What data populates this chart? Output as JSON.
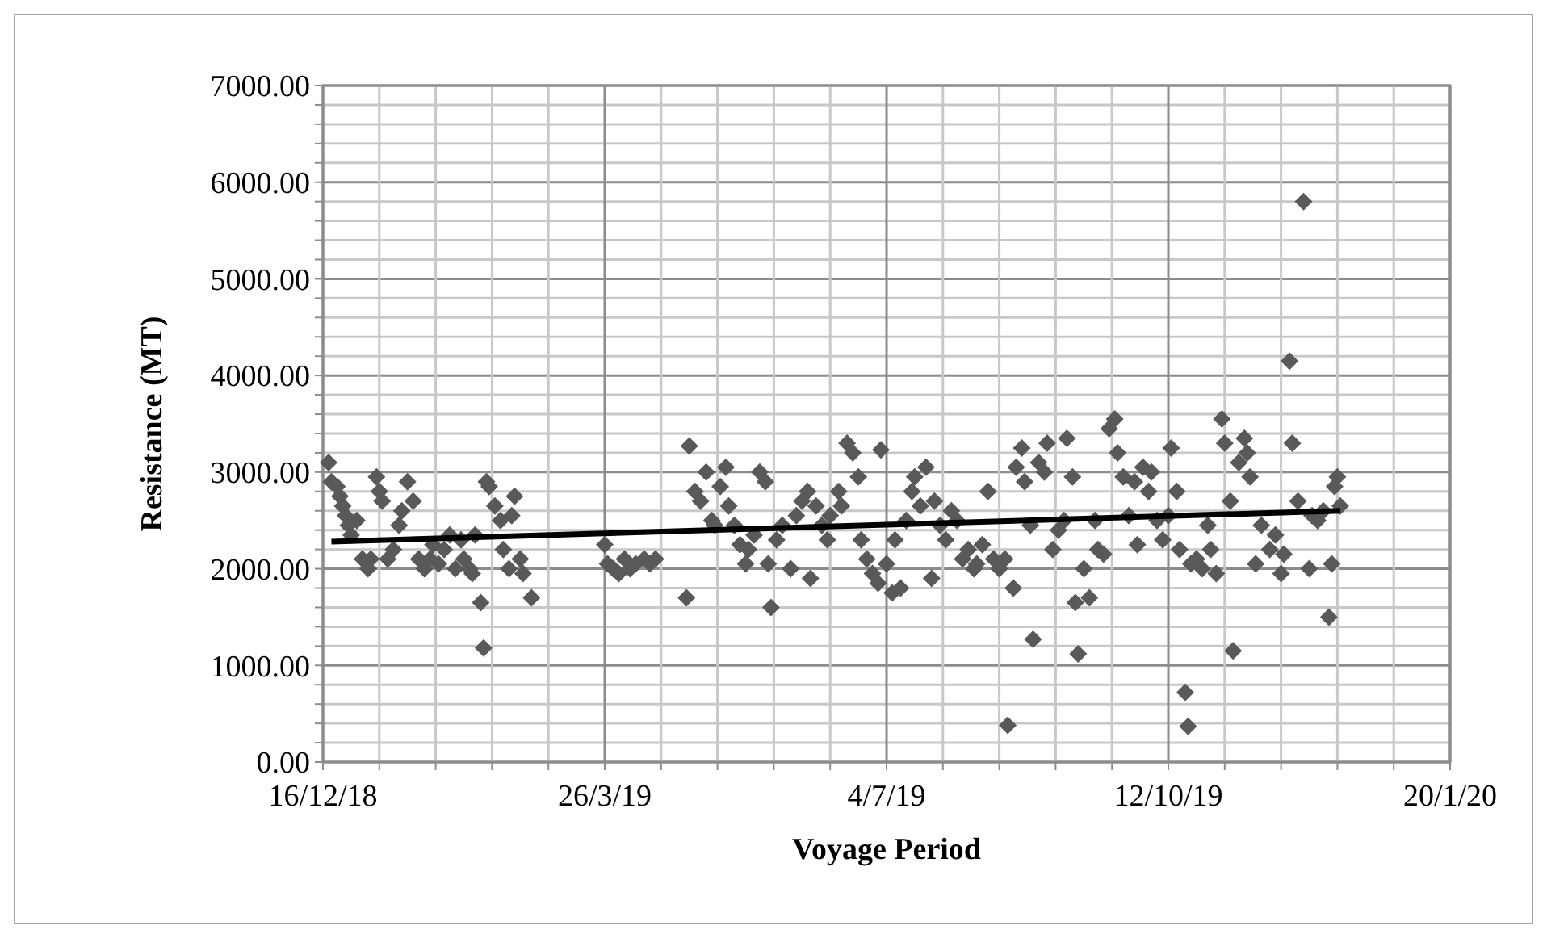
{
  "chart_data": {
    "type": "scatter",
    "xlabel": "Voyage Period",
    "ylabel": "Resistance (MT)",
    "grid": true,
    "xlim": [
      "2018-12-16",
      "2020-01-20"
    ],
    "xticks": [
      {
        "value": "2018-12-16",
        "label": "16/12/18"
      },
      {
        "value": "2019-01-05",
        "label": null
      },
      {
        "value": "2019-01-25",
        "label": null
      },
      {
        "value": "2019-02-14",
        "label": null
      },
      {
        "value": "2019-03-06",
        "label": null
      },
      {
        "value": "2019-03-26",
        "label": "26/3/19"
      },
      {
        "value": "2019-04-15",
        "label": null
      },
      {
        "value": "2019-05-05",
        "label": null
      },
      {
        "value": "2019-05-25",
        "label": null
      },
      {
        "value": "2019-06-14",
        "label": null
      },
      {
        "value": "2019-07-04",
        "label": "4/7/19"
      },
      {
        "value": "2019-07-24",
        "label": null
      },
      {
        "value": "2019-08-13",
        "label": null
      },
      {
        "value": "2019-09-02",
        "label": null
      },
      {
        "value": "2019-09-22",
        "label": null
      },
      {
        "value": "2019-10-12",
        "label": "12/10/19"
      },
      {
        "value": "2019-11-01",
        "label": null
      },
      {
        "value": "2019-11-21",
        "label": null
      },
      {
        "value": "2019-12-11",
        "label": null
      },
      {
        "value": "2019-12-31",
        "label": null
      },
      {
        "value": "2020-01-20",
        "label": "20/1/20"
      }
    ],
    "ylim": [
      0,
      7000
    ],
    "yticks": [
      {
        "value": 0,
        "label": "0.00"
      },
      {
        "value": 200,
        "label": null
      },
      {
        "value": 400,
        "label": null
      },
      {
        "value": 600,
        "label": null
      },
      {
        "value": 800,
        "label": null
      },
      {
        "value": 1000,
        "label": "1000.00"
      },
      {
        "value": 1200,
        "label": null
      },
      {
        "value": 1400,
        "label": null
      },
      {
        "value": 1600,
        "label": null
      },
      {
        "value": 1800,
        "label": null
      },
      {
        "value": 2000,
        "label": "2000.00"
      },
      {
        "value": 2200,
        "label": null
      },
      {
        "value": 2400,
        "label": null
      },
      {
        "value": 2600,
        "label": null
      },
      {
        "value": 2800,
        "label": null
      },
      {
        "value": 3000,
        "label": "3000.00"
      },
      {
        "value": 3200,
        "label": null
      },
      {
        "value": 3400,
        "label": null
      },
      {
        "value": 3600,
        "label": null
      },
      {
        "value": 3800,
        "label": null
      },
      {
        "value": 4000,
        "label": "4000.00"
      },
      {
        "value": 4200,
        "label": null
      },
      {
        "value": 4400,
        "label": null
      },
      {
        "value": 4600,
        "label": null
      },
      {
        "value": 4800,
        "label": null
      },
      {
        "value": 5000,
        "label": "5000.00"
      },
      {
        "value": 5200,
        "label": null
      },
      {
        "value": 5400,
        "label": null
      },
      {
        "value": 5600,
        "label": null
      },
      {
        "value": 5800,
        "label": null
      },
      {
        "value": 6000,
        "label": "6000.00"
      },
      {
        "value": 6200,
        "label": null
      },
      {
        "value": 6400,
        "label": null
      },
      {
        "value": 6600,
        "label": null
      },
      {
        "value": 6800,
        "label": null
      },
      {
        "value": 7000,
        "label": "7000.00"
      }
    ],
    "series": [
      {
        "marker": "diamond",
        "color": "#595959",
        "x": [
          "2018-12-18",
          "2018-12-19",
          "2018-12-21",
          "2018-12-22",
          "2018-12-23",
          "2018-12-24",
          "2018-12-25",
          "2018-12-26",
          "2018-12-28",
          "2018-12-30",
          "2019-01-01",
          "2019-01-02",
          "2019-01-04",
          "2019-01-05",
          "2019-01-06",
          "2019-01-08",
          "2019-01-10",
          "2019-01-12",
          "2019-01-13",
          "2019-01-15",
          "2019-01-17",
          "2019-01-19",
          "2019-01-21",
          "2019-01-23",
          "2019-01-24",
          "2019-01-26",
          "2019-01-28",
          "2019-01-30",
          "2019-02-01",
          "2019-02-03",
          "2019-02-04",
          "2019-02-06",
          "2019-02-07",
          "2019-02-08",
          "2019-02-10",
          "2019-02-11",
          "2019-02-12",
          "2019-02-13",
          "2019-02-15",
          "2019-02-17",
          "2019-02-18",
          "2019-02-20",
          "2019-02-21",
          "2019-02-22",
          "2019-02-24",
          "2019-02-25",
          "2019-02-28",
          "2019-03-26",
          "2019-03-27",
          "2019-03-29",
          "2019-03-31",
          "2019-04-02",
          "2019-04-04",
          "2019-04-06",
          "2019-04-09",
          "2019-04-11",
          "2019-04-13",
          "2019-04-24",
          "2019-04-25",
          "2019-04-27",
          "2019-04-29",
          "2019-05-01",
          "2019-05-03",
          "2019-05-04",
          "2019-05-06",
          "2019-05-08",
          "2019-05-09",
          "2019-05-11",
          "2019-05-13",
          "2019-05-15",
          "2019-05-16",
          "2019-05-18",
          "2019-05-20",
          "2019-05-22",
          "2019-05-23",
          "2019-05-24",
          "2019-05-26",
          "2019-05-28",
          "2019-05-31",
          "2019-06-02",
          "2019-06-04",
          "2019-06-06",
          "2019-06-07",
          "2019-06-09",
          "2019-06-11",
          "2019-06-13",
          "2019-06-14",
          "2019-06-17",
          "2019-06-18",
          "2019-06-20",
          "2019-06-22",
          "2019-06-24",
          "2019-06-25",
          "2019-06-27",
          "2019-06-29",
          "2019-07-01",
          "2019-07-02",
          "2019-07-04",
          "2019-07-06",
          "2019-07-07",
          "2019-07-09",
          "2019-07-11",
          "2019-07-13",
          "2019-07-14",
          "2019-07-16",
          "2019-07-18",
          "2019-07-20",
          "2019-07-21",
          "2019-07-23",
          "2019-07-25",
          "2019-07-27",
          "2019-07-29",
          "2019-07-31",
          "2019-08-02",
          "2019-08-04",
          "2019-08-05",
          "2019-08-07",
          "2019-08-09",
          "2019-08-11",
          "2019-08-13",
          "2019-08-15",
          "2019-08-16",
          "2019-08-18",
          "2019-08-19",
          "2019-08-21",
          "2019-08-22",
          "2019-08-24",
          "2019-08-25",
          "2019-08-27",
          "2019-08-29",
          "2019-08-30",
          "2019-09-01",
          "2019-09-03",
          "2019-09-05",
          "2019-09-06",
          "2019-09-08",
          "2019-09-09",
          "2019-09-10",
          "2019-09-12",
          "2019-09-14",
          "2019-09-16",
          "2019-09-17",
          "2019-09-19",
          "2019-09-21",
          "2019-09-23",
          "2019-09-24",
          "2019-09-26",
          "2019-09-28",
          "2019-09-30",
          "2019-10-01",
          "2019-10-03",
          "2019-10-05",
          "2019-10-06",
          "2019-10-08",
          "2019-10-10",
          "2019-10-12",
          "2019-10-13",
          "2019-10-15",
          "2019-10-16",
          "2019-10-18",
          "2019-10-19",
          "2019-10-20",
          "2019-10-22",
          "2019-10-24",
          "2019-10-26",
          "2019-10-27",
          "2019-10-29",
          "2019-10-31",
          "2019-11-01",
          "2019-11-03",
          "2019-11-04",
          "2019-11-06",
          "2019-11-08",
          "2019-11-09",
          "2019-11-10",
          "2019-11-12",
          "2019-11-14",
          "2019-11-17",
          "2019-11-19",
          "2019-11-21",
          "2019-11-22",
          "2019-11-24",
          "2019-11-25",
          "2019-11-27",
          "2019-11-29",
          "2019-12-01",
          "2019-12-02",
          "2019-12-04",
          "2019-12-06",
          "2019-12-08",
          "2019-12-09",
          "2019-12-10",
          "2019-12-11",
          "2019-12-12"
        ],
        "values": [
          3100,
          2900,
          2850,
          2750,
          2650,
          2550,
          2450,
          2350,
          2500,
          2100,
          2000,
          2100,
          2950,
          2800,
          2700,
          2100,
          2200,
          2450,
          2600,
          2900,
          2700,
          2100,
          2000,
          2100,
          2250,
          2050,
          2200,
          2350,
          2000,
          2300,
          2100,
          2000,
          1950,
          2350,
          1650,
          1180,
          2900,
          2850,
          2650,
          2500,
          2200,
          2000,
          2550,
          2750,
          2100,
          1950,
          1700,
          2250,
          2050,
          2000,
          1950,
          2100,
          2000,
          2050,
          2100,
          2050,
          2100,
          1700,
          3270,
          2800,
          2700,
          3000,
          2500,
          2450,
          2850,
          3050,
          2650,
          2450,
          2250,
          2050,
          2200,
          2350,
          3000,
          2900,
          2050,
          1600,
          2300,
          2450,
          2000,
          2550,
          2700,
          2800,
          1900,
          2650,
          2450,
          2300,
          2550,
          2800,
          2650,
          3300,
          3200,
          2950,
          2300,
          2100,
          1950,
          1850,
          3230,
          2050,
          1750,
          2300,
          1800,
          2500,
          2800,
          2950,
          2650,
          3050,
          1900,
          2700,
          2450,
          2300,
          2600,
          2500,
          2100,
          2200,
          2000,
          2050,
          2250,
          2800,
          2100,
          2000,
          2100,
          380,
          1800,
          3050,
          3250,
          2900,
          2450,
          1270,
          3100,
          3000,
          3300,
          2200,
          2400,
          2500,
          3350,
          2950,
          1650,
          1120,
          2000,
          1700,
          2500,
          2200,
          2150,
          3450,
          3550,
          3200,
          2950,
          2550,
          2900,
          2250,
          3050,
          2800,
          3000,
          2500,
          2300,
          2550,
          3250,
          2800,
          2200,
          720,
          370,
          2050,
          2100,
          2000,
          2450,
          2200,
          1950,
          3550,
          3300,
          2700,
          1150,
          3100,
          3350,
          3200,
          2950,
          2050,
          2450,
          2200,
          2350,
          1950,
          2150,
          4150,
          3300,
          2700,
          5800,
          2000,
          2550,
          2500,
          2600,
          1500,
          2050,
          2850,
          2950,
          2650
        ]
      },
      {
        "type": "line",
        "color": "#000000",
        "x": [
          "2018-12-19",
          "2019-12-12"
        ],
        "values": [
          2280,
          2600
        ]
      }
    ]
  }
}
